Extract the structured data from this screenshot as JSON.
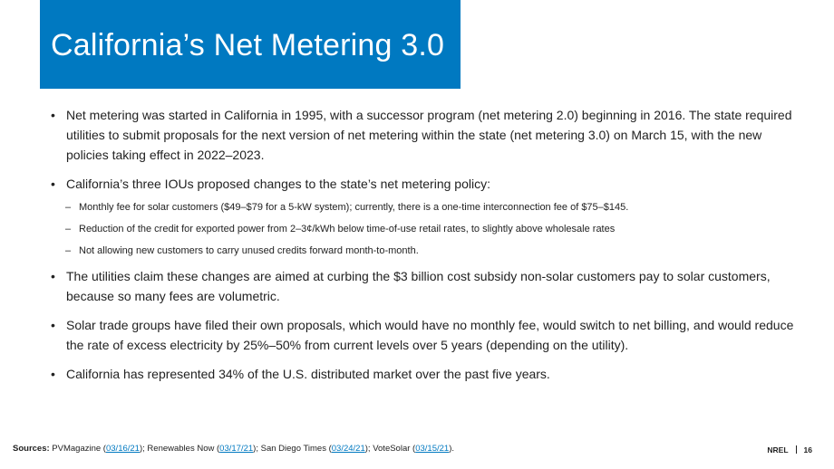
{
  "title": "California’s Net Metering 3.0",
  "bullet_symbol": "•",
  "sub_bullet_symbol": "–",
  "bullets": [
    {
      "text": "Net metering was started in California in 1995, with a successor program (net metering 2.0) beginning in 2016. The state required utilities to submit proposals for the next version of net metering within the state (net metering 3.0) on March 15, with the new policies taking effect in 2022–2023."
    },
    {
      "text": "California’s three IOUs proposed changes to the state’s net metering policy:",
      "sub_bullets": [
        "Monthly fee for solar customers ($49–$79 for a 5-kW system); currently, there is a one-time interconnection fee of $75–$145.",
        "Reduction of the credit for exported power from 2–3¢/kWh below time-of-use retail rates, to slightly above wholesale rates",
        "Not allowing new customers to carry unused credits forward month-to-month."
      ]
    },
    {
      "text": "The utilities claim these changes are aimed at curbing the $3 billion cost subsidy non-solar customers pay to solar customers, because so many fees are volumetric."
    },
    {
      "text": "Solar trade groups have filed their own proposals,  which would have no monthly fee, would switch to net billing, and would reduce the rate of excess electricity by 25%–50% from current levels over 5 years (depending on the utility)."
    },
    {
      "text": "California has represented 34% of the U.S. distributed market over the past five years."
    }
  ],
  "footer": {
    "sources_label": "Sources:",
    "sources": [
      {
        "name": "PVMagazine",
        "date": "03/16/21",
        "sep": "; "
      },
      {
        "name": "Renewables Now",
        "date": "03/17/21",
        "sep": "; "
      },
      {
        "name": "San Diego Times",
        "date": "03/24/21",
        "sep": "; "
      },
      {
        "name": "VoteSolar",
        "date": "03/15/21",
        "sep": "."
      }
    ],
    "org": "NREL",
    "page_number": "16"
  },
  "colors": {
    "title_background": "#0079c1",
    "link": "#0079c1",
    "text": "#222222"
  }
}
